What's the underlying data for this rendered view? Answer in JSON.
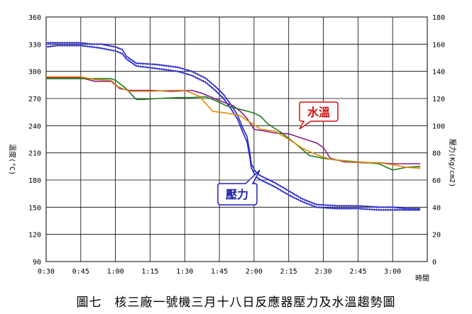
{
  "caption": "圖七　核三廠一號機三月十八日反應器壓力及水溫趨勢圖",
  "chart_data": {
    "type": "line",
    "x_labels": [
      "0:30",
      "0:45",
      "1:00",
      "1:15",
      "1:30",
      "1:45",
      "2:00",
      "2:15",
      "2:30",
      "2:45",
      "3:00"
    ],
    "x_unit_label": "時間",
    "y_left": {
      "label": "溫度(°C)",
      "ticks": [
        90,
        120,
        150,
        180,
        210,
        240,
        270,
        300,
        330,
        360
      ],
      "range": [
        90,
        360
      ]
    },
    "y_right": {
      "label": "壓力(Kg/cm2)",
      "ticks": [
        0,
        20,
        40,
        60,
        80,
        100,
        120,
        140,
        160,
        180
      ],
      "range": [
        0,
        180
      ]
    },
    "grid": true,
    "annotations": {
      "temp": "水溫",
      "pressure": "壓力"
    },
    "colors": {
      "pressure": "#2b2bc8",
      "purple": "#8b1a8b",
      "green": "#1f7a1f",
      "orange": "#e08a00",
      "callout_temp": "#d01010",
      "callout_pressure": "#2020b0"
    },
    "series": [
      {
        "color_key": "pressure",
        "axis": "right",
        "marker": true,
        "x": [
          0.5,
          0.58,
          0.67,
          0.75,
          0.83,
          0.9,
          0.95,
          1.0,
          1.05,
          1.08,
          1.15,
          1.3,
          1.45,
          1.55,
          1.65,
          1.72,
          1.78,
          1.83,
          1.88,
          1.92,
          1.95,
          1.97,
          1.98,
          2.0,
          2.02,
          2.05,
          2.15,
          2.25,
          2.35,
          2.45,
          2.6,
          2.75,
          2.9,
          3.0,
          3.1,
          3.2
        ],
        "y": [
          161,
          161,
          161,
          161,
          160,
          160,
          159,
          158,
          156,
          151,
          146,
          145,
          143,
          140,
          135,
          129,
          123,
          116,
          108,
          98,
          92,
          80,
          72,
          68,
          65,
          63,
          58,
          52,
          46,
          42,
          41,
          41,
          40,
          40,
          39,
          39
        ]
      },
      {
        "color_key": "pressure",
        "axis": "right",
        "marker": true,
        "x": [
          0.5,
          0.58,
          0.67,
          0.75,
          0.83,
          0.9,
          0.95,
          1.0,
          1.05,
          1.08,
          1.15,
          1.3,
          1.45,
          1.55,
          1.65,
          1.72,
          1.78,
          1.83,
          1.88,
          1.92,
          1.95,
          1.97,
          1.98,
          2.0,
          2.02,
          2.05,
          2.15,
          2.25,
          2.35,
          2.45,
          2.6,
          2.75,
          2.9,
          3.0,
          3.1,
          3.2
        ],
        "y": [
          158,
          159,
          159,
          159,
          158,
          157,
          156,
          155,
          153,
          149,
          144,
          142,
          140,
          137,
          132,
          126,
          120,
          113,
          105,
          95,
          88,
          76,
          69,
          65,
          62,
          60,
          55,
          49,
          44,
          40,
          39,
          39,
          38,
          38,
          38,
          38
        ]
      },
      {
        "color_key": "purple",
        "axis": "left",
        "marker": false,
        "x": [
          0.5,
          0.6,
          0.75,
          0.85,
          0.97,
          1.03,
          1.1,
          1.25,
          1.4,
          1.55,
          1.62,
          1.7,
          1.78,
          1.85,
          1.9,
          1.95,
          2.0,
          2.08,
          2.15,
          2.25,
          2.35,
          2.45,
          2.5,
          2.55,
          2.65,
          2.8,
          2.9,
          3.0,
          3.1,
          3.2
        ],
        "y": [
          293,
          293,
          293,
          289,
          289,
          281,
          279,
          279,
          278,
          279,
          276,
          271,
          266,
          262,
          256,
          248,
          236,
          234,
          232,
          231,
          226,
          221,
          216,
          204,
          200,
          199,
          199,
          198,
          198,
          198
        ]
      },
      {
        "color_key": "green",
        "axis": "left",
        "marker": false,
        "x": [
          0.5,
          0.6,
          0.75,
          0.85,
          0.97,
          1.0,
          1.07,
          1.15,
          1.2,
          1.3,
          1.45,
          1.55,
          1.65,
          1.72,
          1.8,
          1.9,
          2.0,
          2.05,
          2.1,
          2.2,
          2.3,
          2.4,
          2.5,
          2.6,
          2.75,
          2.9,
          3.0,
          3.1,
          3.2
        ],
        "y": [
          292,
          292,
          292,
          292,
          292,
          290,
          282,
          269,
          269,
          270,
          271,
          271,
          272,
          268,
          262,
          258,
          254,
          250,
          242,
          232,
          220,
          207,
          204,
          202,
          200,
          198,
          191,
          194,
          195
        ]
      },
      {
        "color_key": "orange",
        "axis": "left",
        "marker": false,
        "x": [
          0.5,
          0.6,
          0.75,
          0.85,
          0.97,
          1.02,
          1.1,
          1.25,
          1.4,
          1.5,
          1.6,
          1.65,
          1.7,
          1.8,
          1.9,
          1.95,
          2.0,
          2.05,
          2.15,
          2.25,
          2.35,
          2.45,
          2.55,
          2.7,
          2.9,
          3.0,
          3.1,
          3.2
        ],
        "y": [
          294,
          294,
          294,
          291,
          290,
          283,
          278,
          278,
          279,
          279,
          273,
          265,
          256,
          254,
          251,
          246,
          241,
          236,
          234,
          225,
          215,
          208,
          203,
          200,
          199,
          197,
          194,
          193
        ]
      }
    ]
  }
}
